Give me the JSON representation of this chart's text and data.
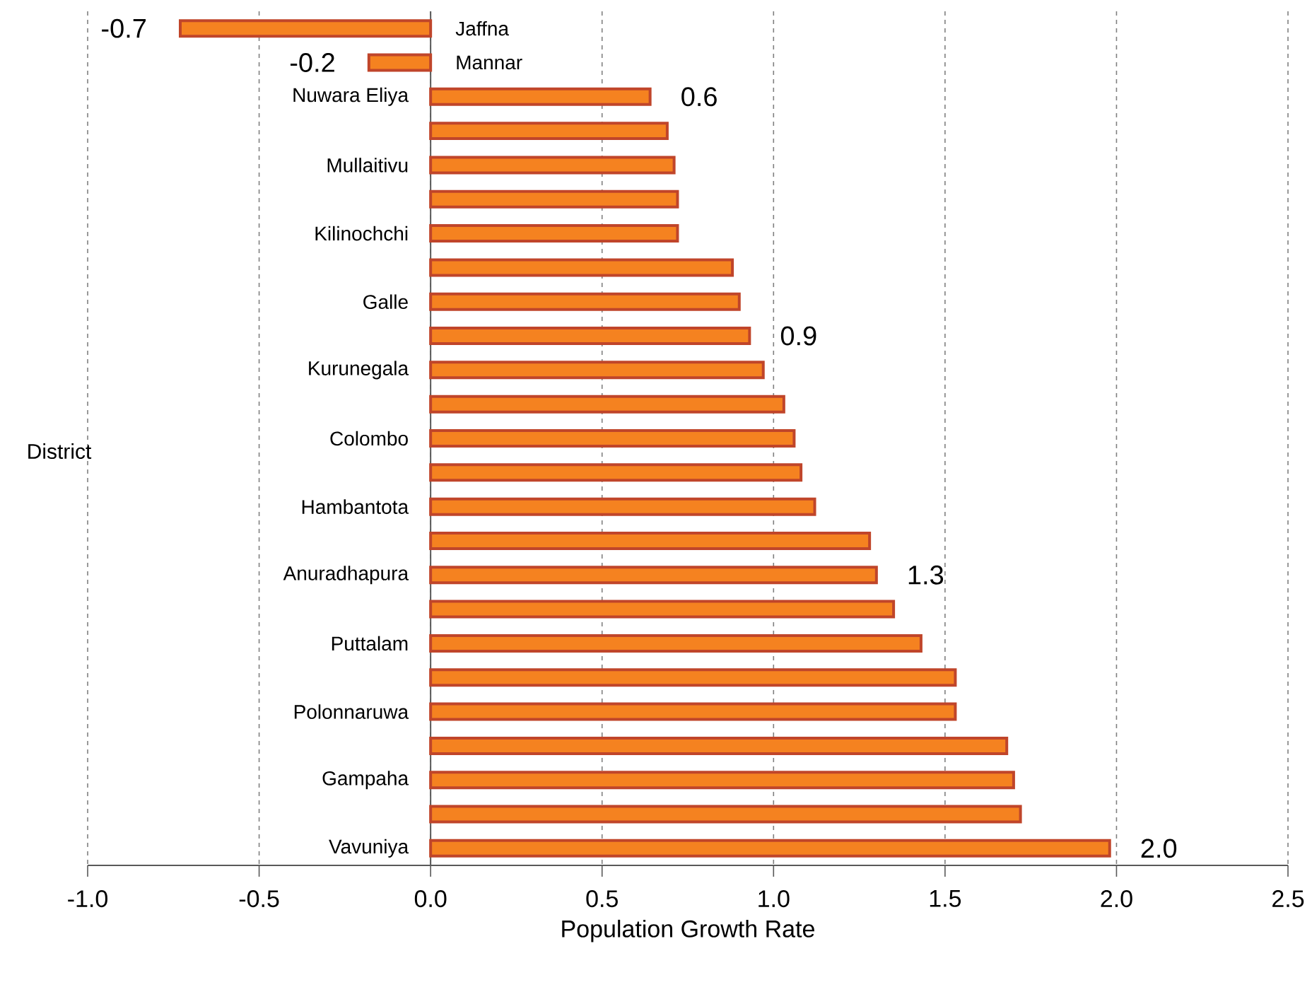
{
  "chart_data": {
    "type": "bar",
    "orientation": "horizontal",
    "xlabel": "Population Growth Rate",
    "ylabel": "District",
    "categories": [
      "Jaffna",
      "Mannar",
      "Nuwara Eliya",
      null,
      "Mullaitivu",
      null,
      "Kilinochchi",
      null,
      "Galle",
      null,
      "Kurunegala",
      null,
      "Colombo",
      null,
      "Hambantota",
      null,
      "Anuradhapura",
      null,
      "Puttalam",
      null,
      "Polonnaruwa",
      null,
      "Gampaha",
      null,
      "Vavuniya"
    ],
    "values": [
      -0.73,
      -0.18,
      0.64,
      0.69,
      0.71,
      0.72,
      0.72,
      0.88,
      0.9,
      0.93,
      0.97,
      1.03,
      1.06,
      1.08,
      1.12,
      1.28,
      1.3,
      1.35,
      1.43,
      1.53,
      1.53,
      1.68,
      1.7,
      1.72,
      1.98
    ],
    "value_labels": [
      "-0.7",
      "-0.2",
      "0.6",
      null,
      null,
      null,
      null,
      null,
      null,
      "0.9",
      null,
      null,
      null,
      null,
      null,
      null,
      "1.3",
      null,
      null,
      null,
      null,
      null,
      null,
      null,
      "2.0"
    ],
    "color": "#f58220",
    "xlim": [
      -1,
      2.5
    ],
    "xticks": [
      {
        "value": -1,
        "label": "-1.0"
      },
      {
        "value": -0.5,
        "label": "-0.5"
      },
      {
        "value": 0,
        "label": "0.0"
      },
      {
        "value": 0.5,
        "label": "0.5"
      },
      {
        "value": 1,
        "label": "1.0"
      },
      {
        "value": 1.5,
        "label": "1.5"
      },
      {
        "value": 2,
        "label": "2.0"
      },
      {
        "value": 2.5,
        "label": "2.5"
      }
    ],
    "grid": "x"
  }
}
